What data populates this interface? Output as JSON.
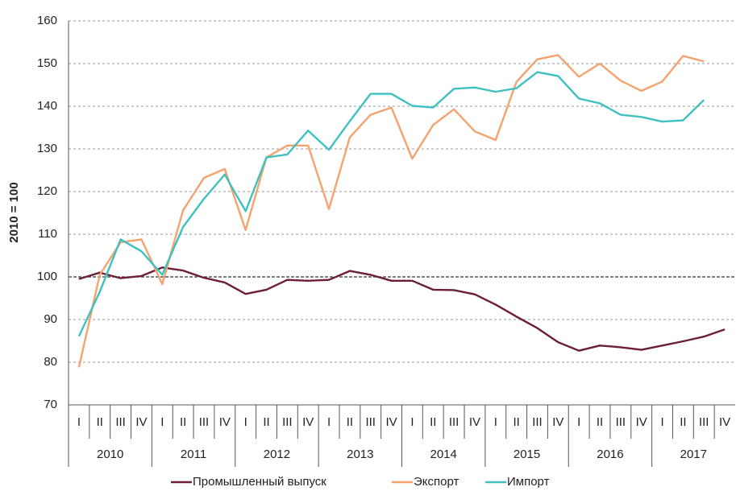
{
  "chart_data": {
    "type": "line",
    "y_label": "2010 = 100",
    "categories": [
      "I",
      "II",
      "III",
      "IV",
      "I",
      "II",
      "III",
      "IV",
      "I",
      "II",
      "III",
      "IV",
      "I",
      "II",
      "III",
      "IV",
      "I",
      "II",
      "III",
      "IV",
      "I",
      "II",
      "III",
      "IV",
      "I",
      "II",
      "III",
      "IV",
      "I",
      "II",
      "III",
      "IV"
    ],
    "years": [
      "2010",
      "2011",
      "2012",
      "2013",
      "2014",
      "2015",
      "2016",
      "2017"
    ],
    "ylim": [
      70,
      160
    ],
    "yticks": [
      70,
      80,
      90,
      100,
      110,
      120,
      130,
      140,
      150,
      160
    ],
    "grid": true,
    "reference_line": 100,
    "series": [
      {
        "name": "Промышленный выпуск",
        "color": "#6b1d3a",
        "values": [
          99.5,
          101,
          99.7,
          100.2,
          102.2,
          101.5,
          99.8,
          98.7,
          96,
          97,
          99.3,
          99.1,
          99.3,
          101.4,
          100.5,
          99.1,
          99.1,
          97,
          96.9,
          95.9,
          93.5,
          90.7,
          88,
          84.7,
          82.7,
          83.9,
          83.5,
          82.9,
          83.9,
          84.9,
          86,
          87.7
        ]
      },
      {
        "name": "Экспорт",
        "color": "#f4a26e",
        "values": [
          78.8,
          100.5,
          108.1,
          108.8,
          98.3,
          115.6,
          123.2,
          125.3,
          111,
          128,
          130.8,
          130.8,
          115.9,
          132.7,
          138,
          139.7,
          127.7,
          135.6,
          139.3,
          134.1,
          132.1,
          145.7,
          151,
          152,
          146.9,
          150,
          146,
          143.6,
          145.8,
          151.8,
          150.5,
          null
        ]
      },
      {
        "name": "Импорт",
        "color": "#3fc1bf",
        "values": [
          86.1,
          96.5,
          108.8,
          106,
          100.5,
          111.7,
          118.3,
          124,
          115.4,
          128,
          128.7,
          134.3,
          129.8,
          136.5,
          142.9,
          142.9,
          140.1,
          139.7,
          144.1,
          144.4,
          143.4,
          144.2,
          148,
          147.1,
          141.8,
          140.7,
          138,
          137.5,
          136.4,
          136.7,
          141.5,
          null
        ]
      }
    ]
  }
}
